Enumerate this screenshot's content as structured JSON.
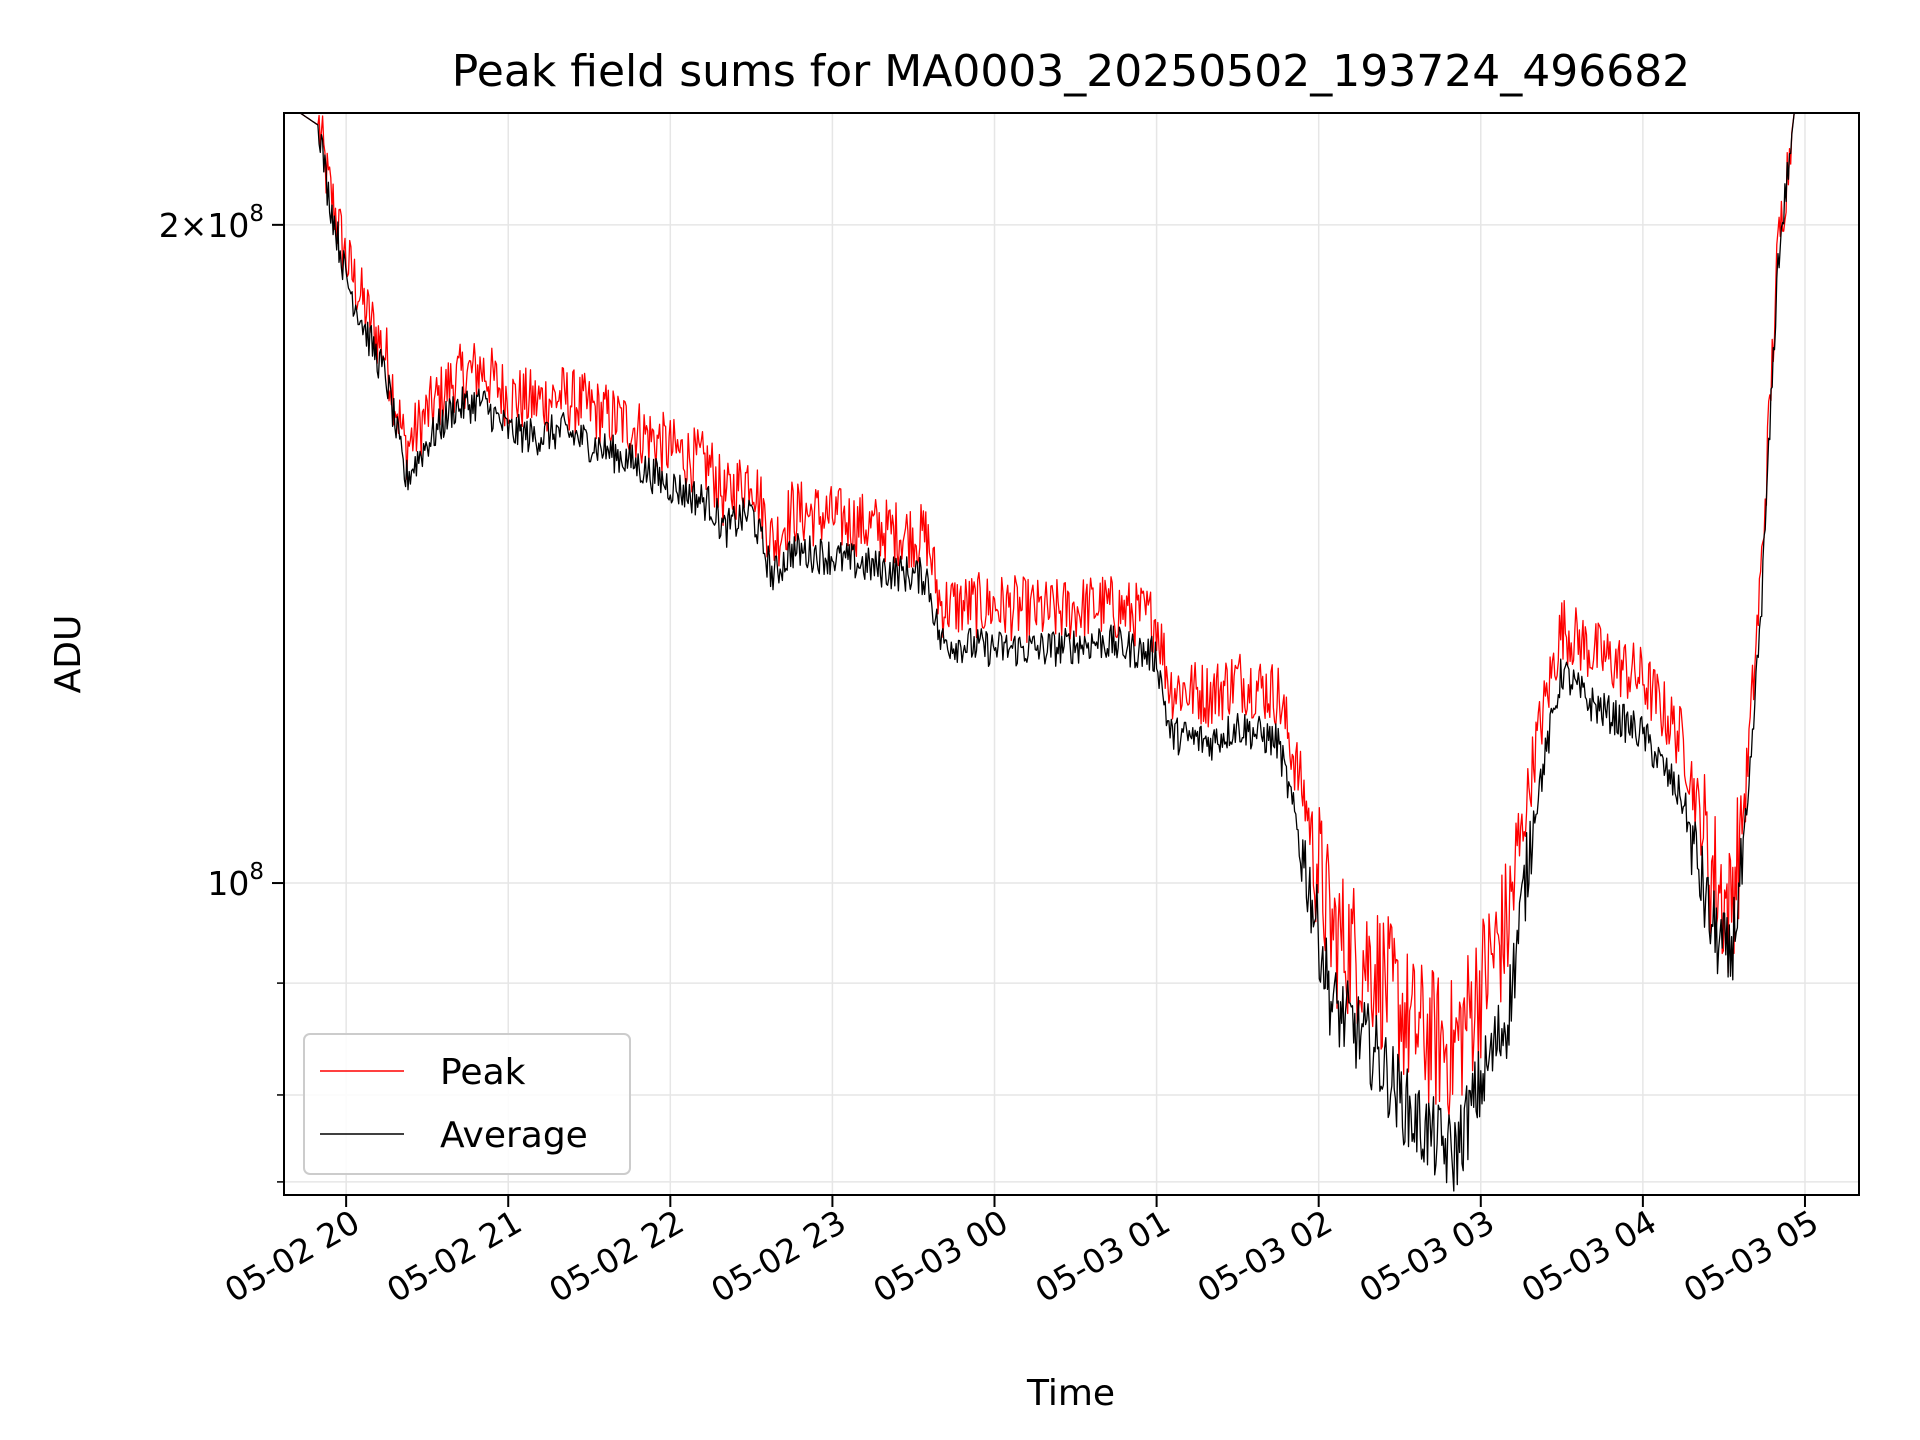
{
  "chart_data": {
    "type": "line",
    "title": "Peak field sums for MA0003_20250502_193724_496682",
    "xlabel": "Time",
    "ylabel": "ADU",
    "xlim": [
      "2025-05-02 19:37",
      "2025-05-03 05:20"
    ],
    "ylim": [
      72000000,
      225000000
    ],
    "yscale": "log",
    "grid": true,
    "legend_position": "lower-left",
    "x_ticks": [
      {
        "t": "2025-05-02 20:00",
        "label": "05-02 20"
      },
      {
        "t": "2025-05-02 21:00",
        "label": "05-02 21"
      },
      {
        "t": "2025-05-02 22:00",
        "label": "05-02 22"
      },
      {
        "t": "2025-05-02 23:00",
        "label": "05-02 23"
      },
      {
        "t": "2025-05-03 00:00",
        "label": "05-03 00"
      },
      {
        "t": "2025-05-03 01:00",
        "label": "05-03 01"
      },
      {
        "t": "2025-05-03 02:00",
        "label": "05-03 02"
      },
      {
        "t": "2025-05-03 03:00",
        "label": "05-03 03"
      },
      {
        "t": "2025-05-03 04:00",
        "label": "05-03 04"
      },
      {
        "t": "2025-05-03 05:00",
        "label": "05-03 05"
      }
    ],
    "y_major_ticks": [
      {
        "v": 100000000,
        "mant": "",
        "exp": "8"
      },
      {
        "v": 200000000,
        "mant": "2",
        "exp": "8"
      }
    ],
    "y_minor_ticks": [
      73000000,
      80000000,
      90000000,
      300000000
    ],
    "series": [
      {
        "name": "Peak",
        "color": "#ff0000",
        "noise": 0.035,
        "points": [
          [
            "2025-05-02 19:43",
            225000000
          ],
          [
            "2025-05-02 19:50",
            222000000
          ],
          [
            "2025-05-02 19:53",
            210000000
          ],
          [
            "2025-05-02 20:00",
            193000000
          ],
          [
            "2025-05-02 20:08",
            182000000
          ],
          [
            "2025-05-02 20:15",
            174000000
          ],
          [
            "2025-05-02 20:22",
            158000000
          ],
          [
            "2025-05-02 20:30",
            164000000
          ],
          [
            "2025-05-02 20:40",
            170000000
          ],
          [
            "2025-05-02 20:50",
            172000000
          ],
          [
            "2025-05-02 21:00",
            167000000
          ],
          [
            "2025-05-02 21:10",
            166000000
          ],
          [
            "2025-05-02 21:20",
            167000000
          ],
          [
            "2025-05-02 21:30",
            165000000
          ],
          [
            "2025-05-02 21:45",
            162000000
          ],
          [
            "2025-05-02 22:00",
            158000000
          ],
          [
            "2025-05-02 22:15",
            155000000
          ],
          [
            "2025-05-02 22:20",
            150000000
          ],
          [
            "2025-05-02 22:30",
            154000000
          ],
          [
            "2025-05-02 22:38",
            143000000
          ],
          [
            "2025-05-02 22:45",
            148000000
          ],
          [
            "2025-05-02 23:00",
            147000000
          ],
          [
            "2025-05-02 23:20",
            145000000
          ],
          [
            "2025-05-02 23:35",
            144000000
          ],
          [
            "2025-05-02 23:40",
            134000000
          ],
          [
            "2025-05-03 00:00",
            134000000
          ],
          [
            "2025-05-03 00:20",
            133000000
          ],
          [
            "2025-05-03 00:40",
            134000000
          ],
          [
            "2025-05-03 01:00",
            132000000
          ],
          [
            "2025-05-03 01:05",
            123000000
          ],
          [
            "2025-05-03 01:20",
            122000000
          ],
          [
            "2025-05-03 01:30",
            124000000
          ],
          [
            "2025-05-03 01:45",
            122000000
          ],
          [
            "2025-05-03 01:55",
            109000000
          ],
          [
            "2025-05-03 02:05",
            95000000
          ],
          [
            "2025-05-03 02:20",
            92000000
          ],
          [
            "2025-05-03 02:35",
            86000000
          ],
          [
            "2025-05-03 02:50",
            84000000
          ],
          [
            "2025-05-03 03:00",
            90000000
          ],
          [
            "2025-05-03 03:10",
            96000000
          ],
          [
            "2025-05-03 03:20",
            115000000
          ],
          [
            "2025-05-03 03:30",
            131000000
          ],
          [
            "2025-05-03 03:40",
            128000000
          ],
          [
            "2025-05-03 03:50",
            126000000
          ],
          [
            "2025-05-03 04:00",
            124000000
          ],
          [
            "2025-05-03 04:15",
            116000000
          ],
          [
            "2025-05-03 04:25",
            102000000
          ],
          [
            "2025-05-03 04:32",
            97000000
          ],
          [
            "2025-05-03 04:38",
            110000000
          ],
          [
            "2025-05-03 04:44",
            140000000
          ],
          [
            "2025-05-03 04:50",
            195000000
          ],
          [
            "2025-05-03 04:56",
            225000000
          ],
          [
            "2025-05-03 05:20",
            225000000
          ]
        ]
      },
      {
        "name": "Average",
        "color": "#000000",
        "noise": 0.02,
        "points": [
          [
            "2025-05-02 19:43",
            225000000
          ],
          [
            "2025-05-02 19:50",
            222000000
          ],
          [
            "2025-05-02 19:53",
            208000000
          ],
          [
            "2025-05-02 20:00",
            189000000
          ],
          [
            "2025-05-02 20:08",
            178000000
          ],
          [
            "2025-05-02 20:15",
            170000000
          ],
          [
            "2025-05-02 20:22",
            153000000
          ],
          [
            "2025-05-02 20:30",
            159000000
          ],
          [
            "2025-05-02 20:40",
            165000000
          ],
          [
            "2025-05-02 20:50",
            166000000
          ],
          [
            "2025-05-02 21:00",
            161000000
          ],
          [
            "2025-05-02 21:10",
            160000000
          ],
          [
            "2025-05-02 21:20",
            161000000
          ],
          [
            "2025-05-02 21:30",
            159000000
          ],
          [
            "2025-05-02 21:45",
            156000000
          ],
          [
            "2025-05-02 22:00",
            152000000
          ],
          [
            "2025-05-02 22:15",
            149000000
          ],
          [
            "2025-05-02 22:20",
            145000000
          ],
          [
            "2025-05-02 22:30",
            148000000
          ],
          [
            "2025-05-02 22:38",
            138000000
          ],
          [
            "2025-05-02 22:45",
            142000000
          ],
          [
            "2025-05-02 23:00",
            141000000
          ],
          [
            "2025-05-02 23:20",
            139000000
          ],
          [
            "2025-05-02 23:35",
            138000000
          ],
          [
            "2025-05-02 23:40",
            129000000
          ],
          [
            "2025-05-03 00:00",
            128000000
          ],
          [
            "2025-05-03 00:20",
            128000000
          ],
          [
            "2025-05-03 00:40",
            129000000
          ],
          [
            "2025-05-03 01:00",
            127000000
          ],
          [
            "2025-05-03 01:05",
            117000000
          ],
          [
            "2025-05-03 01:20",
            116000000
          ],
          [
            "2025-05-03 01:30",
            118000000
          ],
          [
            "2025-05-03 01:45",
            116000000
          ],
          [
            "2025-05-03 01:55",
            102000000
          ],
          [
            "2025-05-03 02:05",
            88000000
          ],
          [
            "2025-05-03 02:20",
            84000000
          ],
          [
            "2025-05-03 02:35",
            78000000
          ],
          [
            "2025-05-03 02:50",
            75000000
          ],
          [
            "2025-05-03 03:00",
            81000000
          ],
          [
            "2025-05-03 03:10",
            87000000
          ],
          [
            "2025-05-03 03:20",
            108000000
          ],
          [
            "2025-05-03 03:30",
            125000000
          ],
          [
            "2025-05-03 03:40",
            121000000
          ],
          [
            "2025-05-03 03:50",
            119000000
          ],
          [
            "2025-05-03 04:00",
            117000000
          ],
          [
            "2025-05-03 04:15",
            109000000
          ],
          [
            "2025-05-03 04:25",
            96000000
          ],
          [
            "2025-05-03 04:32",
            92000000
          ],
          [
            "2025-05-03 04:38",
            104000000
          ],
          [
            "2025-05-03 04:44",
            135000000
          ],
          [
            "2025-05-03 04:50",
            192000000
          ],
          [
            "2025-05-03 04:56",
            225000000
          ],
          [
            "2025-05-03 05:20",
            225000000
          ]
        ]
      }
    ]
  }
}
